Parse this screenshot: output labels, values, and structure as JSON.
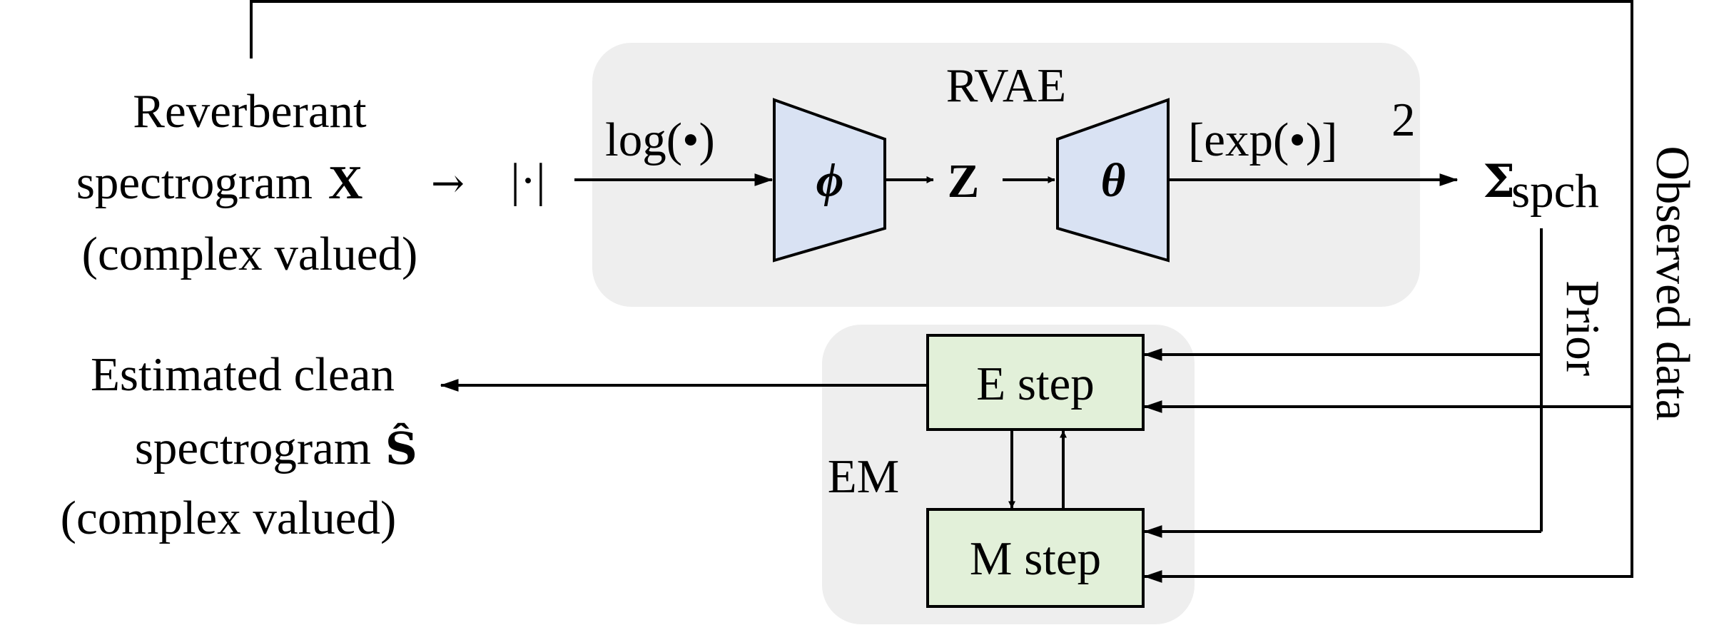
{
  "colors": {
    "group_bg": "#eeeeee",
    "net_fill": "#d9e2f3",
    "step_fill": "#e2f0d9",
    "line": "#000000"
  },
  "input": {
    "line1": "Reverberant",
    "line2": "spectrogram",
    "symbol": "X",
    "line3": "(complex valued)",
    "arrow_glyph": "→",
    "abs_glyph": "|·|"
  },
  "rvae": {
    "title": "RVAE",
    "log_label": "log(•)",
    "encoder_symbol": "ϕ",
    "latent": "Z",
    "decoder_symbol": "θ",
    "exp_label": "[exp(•)]",
    "exp_power": "2",
    "output_symbol": "Σ",
    "output_subscript": "spch"
  },
  "em": {
    "title": "EM",
    "e_step": "E step",
    "m_step": "M step"
  },
  "output": {
    "line1": "Estimated clean",
    "line2": "spectrogram",
    "symbol": "Ŝ",
    "line3": "(complex valued)"
  },
  "labels": {
    "prior": "Prior",
    "observed": "Observed data"
  }
}
